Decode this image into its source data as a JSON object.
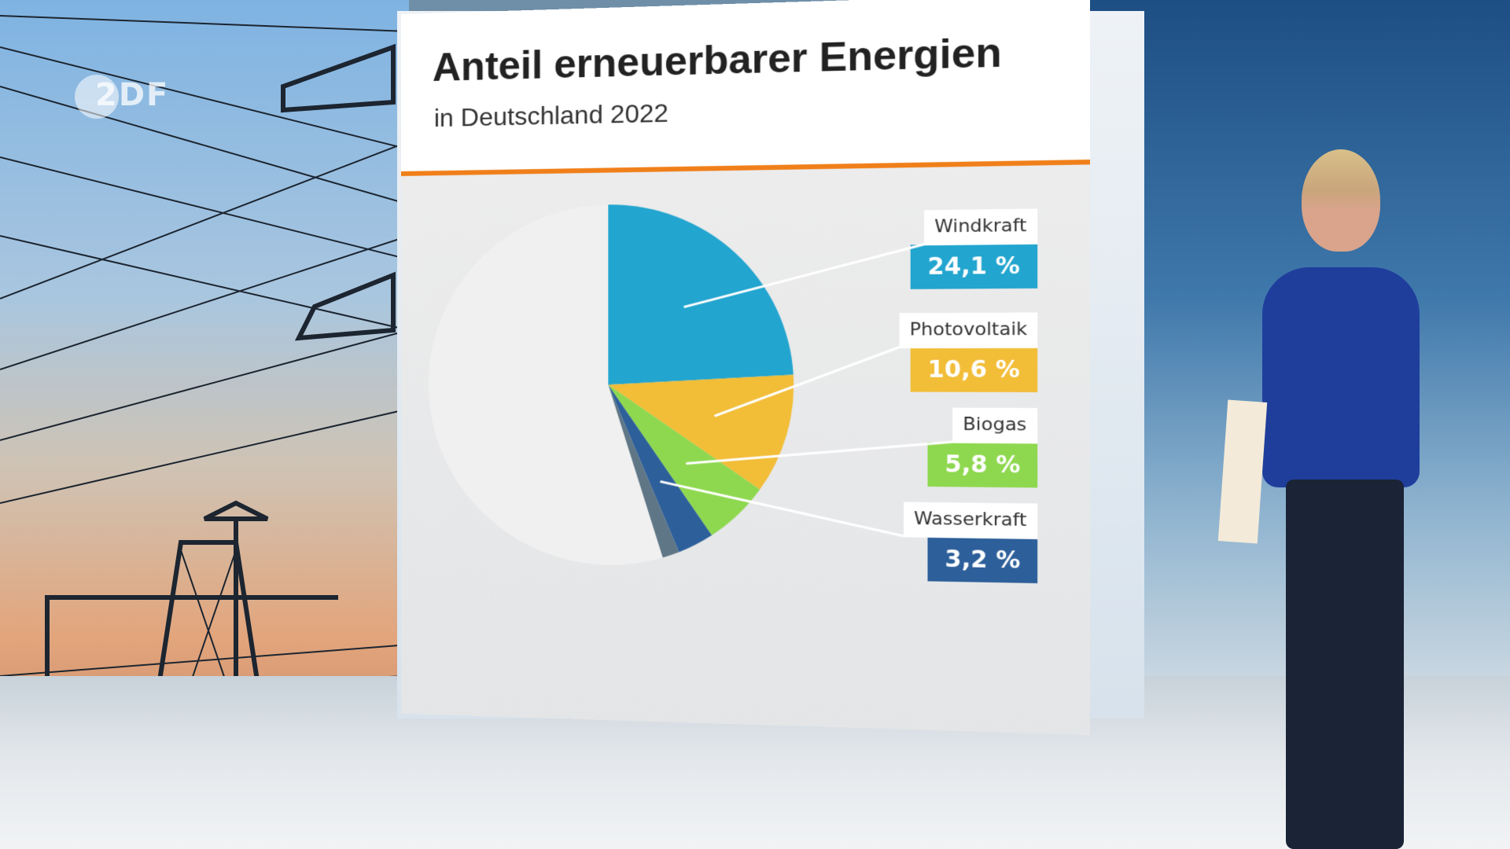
{
  "broadcast": {
    "logo_text": "2DF"
  },
  "chart_data": {
    "type": "pie",
    "title": "Anteil erneuerbarer Energien",
    "subtitle": "in Deutschland 2022",
    "slices": [
      {
        "name": "Windkraft",
        "value": 24.1,
        "label": "24,1 %",
        "color": "#22a5cf"
      },
      {
        "name": "Photovoltaik",
        "value": 10.6,
        "label": "10,6 %",
        "color": "#f2bd37"
      },
      {
        "name": "Biogas",
        "value": 5.8,
        "label": "5,8 %",
        "color": "#8ed84f"
      },
      {
        "name": "Wasserkraft",
        "value": 3.2,
        "label": "3,2 %",
        "color": "#2d5f9a"
      },
      {
        "name": "",
        "value": 1.5,
        "label": "",
        "color": "#5e7686"
      },
      {
        "name": "",
        "value": 54.8,
        "label": "",
        "color": "#f0f0f0"
      }
    ]
  },
  "colors": {
    "accent_rule": "#f07f1a"
  }
}
